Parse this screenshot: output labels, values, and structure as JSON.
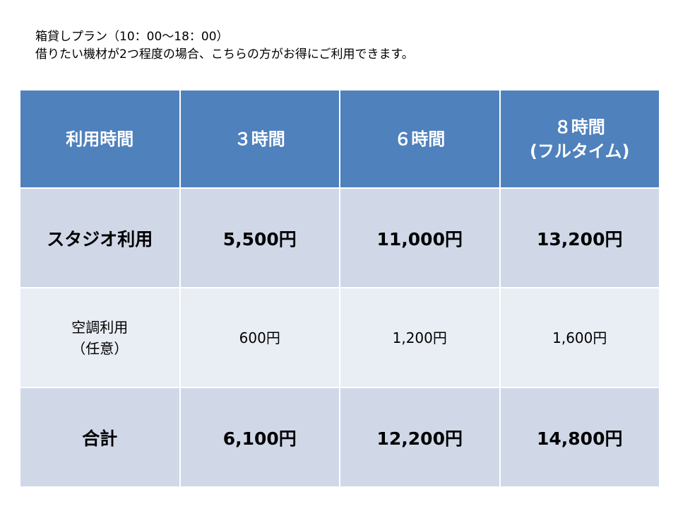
{
  "heading": {
    "line1": "箱貸しプラン（10：00〜18：00）",
    "line2": "借りたい機材が2つ程度の場合、こちらの方がお得にご利用できます。"
  },
  "table": {
    "header": {
      "label": "利用時間",
      "col1": "３時間",
      "col2": "６時間",
      "col3_line1": "８時間",
      "col3_line2": "(フルタイム)"
    },
    "studio": {
      "label": "スタジオ利用",
      "col1": "5,500円",
      "col2": "11,000円",
      "col3": "13,200円"
    },
    "aircon": {
      "label_line1": "空調利用",
      "label_line2": "（任意）",
      "col1": "600円",
      "col2": "1,200円",
      "col3": "1,600円"
    },
    "total": {
      "label": "合計",
      "col1": "6,100円",
      "col2": "12,200円",
      "col3": "14,800円"
    }
  },
  "colors": {
    "header_bg": "#4f81bd",
    "row_dark_bg": "#d0d8e8",
    "row_light_bg": "#e9edf4"
  }
}
